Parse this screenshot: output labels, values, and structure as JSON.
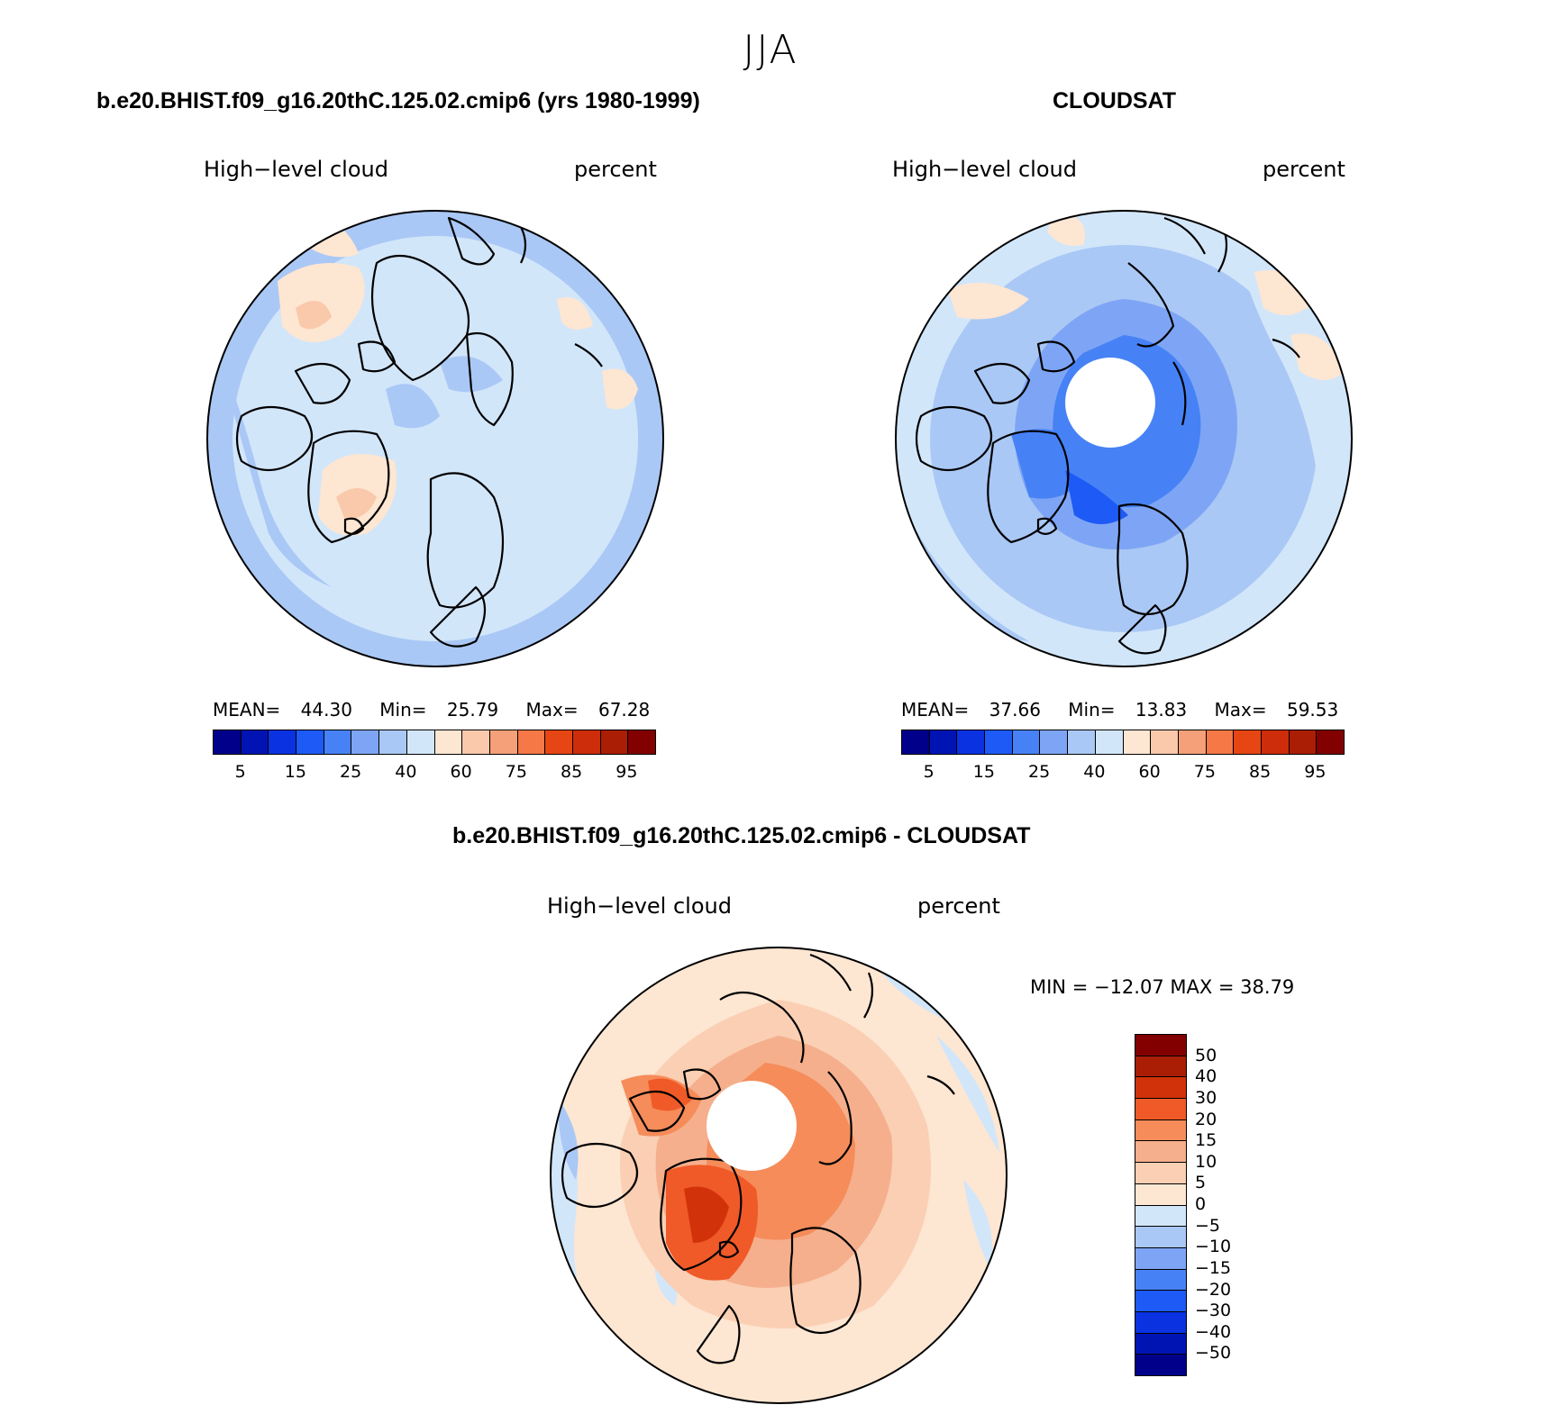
{
  "season": "JJA",
  "panels": {
    "model": {
      "title": "b.e20.BHIST.f09_g16.20thC.125.02.cmip6 (yrs 1980-1999)",
      "variable": "High−level cloud",
      "units": "percent",
      "stats": {
        "mean_label": "MEAN=",
        "mean": "44.30",
        "min_label": "Min=",
        "min": "25.79",
        "max_label": "Max=",
        "max": "67.28"
      }
    },
    "obs": {
      "title": "CLOUDSAT",
      "variable": "High−level cloud",
      "units": "percent",
      "stats": {
        "mean_label": "MEAN=",
        "mean": "37.66",
        "min_label": "Min=",
        "min": "13.83",
        "max_label": "Max=",
        "max": "59.53"
      }
    },
    "diff": {
      "title": "b.e20.BHIST.f09_g16.20thC.125.02.cmip6 - CLOUDSAT",
      "variable": "High−level cloud",
      "units": "percent",
      "minmax": "MIN = −12.07 MAX =   38.79"
    }
  },
  "colorbar_abs": {
    "colors": [
      "#00008b",
      "#0014b4",
      "#0a32e1",
      "#1e5af5",
      "#4682f5",
      "#7ea5f5",
      "#aac8f5",
      "#d2e6fa",
      "#fde6d2",
      "#fac8aa",
      "#f5a078",
      "#f57846",
      "#e64614",
      "#cd2d0a",
      "#aa1e05",
      "#820000"
    ],
    "labels": [
      "5",
      "15",
      "25",
      "40",
      "60",
      "75",
      "85",
      "95"
    ]
  },
  "colorbar_diff": {
    "colors": [
      "#820000",
      "#aa1e05",
      "#d2320a",
      "#f05a28",
      "#f58c5a",
      "#f5af8c",
      "#facfb4",
      "#fde6d2",
      "#d2e6fa",
      "#aac8f5",
      "#7ea5f5",
      "#4682f5",
      "#1e5af5",
      "#0a32e1",
      "#0014b4",
      "#00008b"
    ],
    "labels": [
      "50",
      "40",
      "30",
      "20",
      "15",
      "10",
      "5",
      "0",
      "−5",
      "−10",
      "−15",
      "−20",
      "−30",
      "−40",
      "−50"
    ]
  }
}
